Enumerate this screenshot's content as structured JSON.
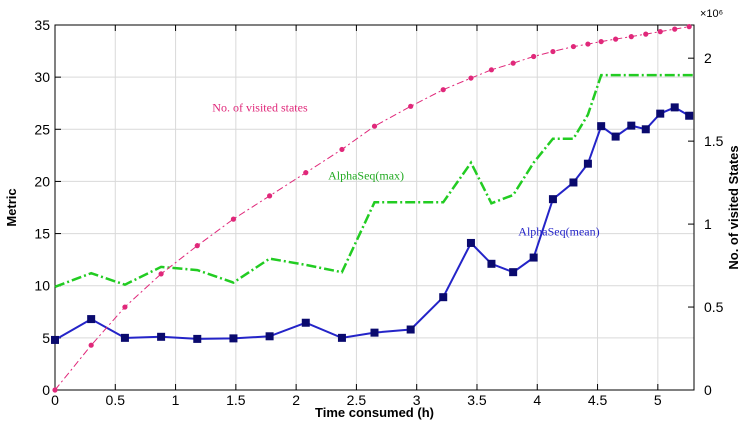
{
  "chart_data": {
    "type": "line",
    "xlabel": "Time consumed (h)",
    "ylabel_left": "Metric",
    "ylabel_right": "No. of visited States",
    "right_axis_multiplier": "×10⁶",
    "xlim": [
      0,
      5.3
    ],
    "ylim_left": [
      0,
      35
    ],
    "ylim_right": [
      0,
      2.2
    ],
    "x_ticks": [
      0,
      0.5,
      1,
      1.5,
      2,
      2.5,
      3,
      3.5,
      4,
      4.5,
      5
    ],
    "y_ticks_left": [
      0,
      5,
      10,
      15,
      20,
      25,
      30,
      35
    ],
    "y_ticks_right": [
      0,
      0.5,
      1,
      1.5,
      2
    ],
    "grid": true,
    "series": [
      {
        "name": "AlphaSeq(mean)",
        "axis": "left",
        "color": "#2424c8",
        "marker": "square",
        "x": [
          0,
          0.3,
          0.58,
          0.88,
          1.18,
          1.48,
          1.78,
          2.08,
          2.38,
          2.65,
          2.95,
          3.22,
          3.45,
          3.62,
          3.8,
          3.97,
          4.13,
          4.3,
          4.42,
          4.53,
          4.65,
          4.78,
          4.9,
          5.02,
          5.14,
          5.26
        ],
        "y": [
          4.8,
          6.8,
          5.0,
          5.1,
          4.9,
          4.95,
          5.15,
          6.45,
          5.0,
          5.5,
          5.8,
          8.9,
          14.1,
          12.1,
          11.3,
          12.7,
          18.3,
          19.9,
          21.7,
          25.3,
          24.3,
          25.35,
          25.0,
          26.5,
          27.1,
          26.3
        ]
      },
      {
        "name": "AlphaSeq(max)",
        "axis": "left",
        "color": "#22cc22",
        "marker": "none",
        "x": [
          0,
          0.3,
          0.58,
          0.88,
          1.18,
          1.48,
          1.78,
          2.08,
          2.38,
          2.65,
          2.95,
          3.22,
          3.45,
          3.62,
          3.8,
          3.97,
          4.13,
          4.3,
          4.42,
          4.53,
          4.65,
          4.78,
          4.9,
          5.02,
          5.14,
          5.3
        ],
        "y": [
          9.9,
          11.2,
          10.1,
          11.8,
          11.5,
          10.3,
          12.6,
          12.0,
          11.3,
          18.0,
          18.0,
          18.0,
          21.8,
          17.9,
          18.7,
          21.8,
          24.1,
          24.1,
          26.4,
          30.2,
          30.2,
          30.2,
          30.2,
          30.2,
          30.2,
          30.2
        ]
      },
      {
        "name": "No. of visited states",
        "axis": "right",
        "color": "#e0287a",
        "marker": "circle",
        "x": [
          0,
          0.3,
          0.58,
          0.88,
          1.18,
          1.48,
          1.78,
          2.08,
          2.38,
          2.65,
          2.95,
          3.22,
          3.45,
          3.62,
          3.8,
          3.97,
          4.13,
          4.3,
          4.42,
          4.53,
          4.65,
          4.78,
          4.9,
          5.02,
          5.14,
          5.26
        ],
        "y": [
          0.0,
          0.27,
          0.5,
          0.7,
          0.87,
          1.03,
          1.17,
          1.31,
          1.45,
          1.59,
          1.71,
          1.81,
          1.88,
          1.93,
          1.97,
          2.01,
          2.04,
          2.07,
          2.085,
          2.1,
          2.115,
          2.13,
          2.145,
          2.16,
          2.175,
          2.19
        ]
      }
    ],
    "annotations": [
      {
        "text": "No. of visited states",
        "color": "#e0287a",
        "x": 1.7,
        "y_left": 26.7
      },
      {
        "text": "AlphaSeq(max)",
        "color": "#22aa22",
        "x": 2.58,
        "y_left": 20.2
      },
      {
        "text": "AlphaSeq(mean)",
        "color": "#2424c8",
        "x": 4.18,
        "y_left": 14.8
      }
    ]
  }
}
